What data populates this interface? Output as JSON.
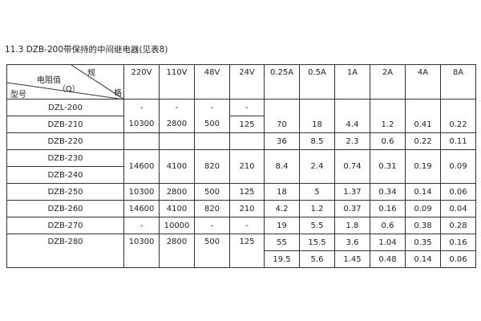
{
  "title": "11.3 DZB-200带保持的中间继电器(见表8)",
  "header": {
    "spec": "规",
    "spec2": "格",
    "resistance": "电阻值",
    "unit": "（Ω）",
    "model": "型号",
    "columns": [
      "220V",
      "110V",
      "48V",
      "24V",
      "0.25A",
      "0.5A",
      "1A",
      "2A",
      "4A",
      "8A"
    ]
  },
  "rows": {
    "dzl200": {
      "model": "DZL-200",
      "v": [
        "-",
        "-",
        "-",
        "-"
      ]
    },
    "dzb210": {
      "model": "DZB-210",
      "v": [
        "10300",
        "2800",
        "500",
        "125"
      ],
      "a": [
        "70",
        "18",
        "4.4",
        "1.2",
        "0.41",
        "0.22"
      ]
    },
    "dzb220": {
      "model": "DZB-220",
      "a": [
        "36",
        "8.5",
        "2.3",
        "0.6",
        "0.22",
        "0.11"
      ]
    },
    "dzb230": {
      "model": "DZB-230",
      "v": [
        "14600",
        "4100",
        "820",
        "210"
      ],
      "a": [
        "8.4",
        "2.4",
        "0.74",
        "0.31",
        "0.19",
        "0.09"
      ]
    },
    "dzb240": {
      "model": "DZB-240"
    },
    "dzb250": {
      "model": "DZB-250",
      "v": [
        "10300",
        "2800",
        "500",
        "125"
      ],
      "a": [
        "18",
        "5",
        "1.37",
        "0.34",
        "0.14",
        "0.06"
      ]
    },
    "dzb260": {
      "model": "DZB-260",
      "v": [
        "14600",
        "4100",
        "820",
        "210"
      ],
      "a": [
        "4.2",
        "1.2",
        "0.37",
        "0.16",
        "0.09",
        "0.04"
      ]
    },
    "dzb270": {
      "model": "DZB-270",
      "v": [
        "-",
        "10000",
        "-",
        "-"
      ],
      "a": [
        "19",
        "5.5",
        "1.8",
        "0.6",
        "0.38",
        "0.28"
      ]
    },
    "dzb280": {
      "model": "DZB-280",
      "v": [
        "10300",
        "2800",
        "500",
        "125"
      ],
      "a": [
        "55",
        "15.5",
        "3.6",
        "1.04",
        "0.35",
        "0.16"
      ],
      "a2": [
        "19.5",
        "5.6",
        "1.45",
        "0.48",
        "0.14",
        "0.06"
      ]
    }
  }
}
